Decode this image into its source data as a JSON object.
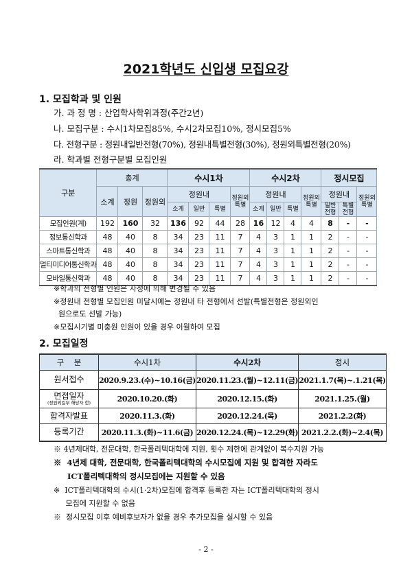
{
  "title": "2021학년도 신입생 모집요강",
  "section1": {
    "heading": "1. 모집학과 및 인원",
    "lines": [
      "가. 과 정 명 : 산업학사학위과정(주간2년)",
      "나. 모집구분 : 수시1차모집85%, 수시2차모집10%, 정시모집5%",
      "다. 전형구분 : 정원내일반전형(70%), 정원내특별전형(30%), 정원외특별전형(20%)",
      "라. 학과별 전형구분별 모집인원"
    ],
    "table": {
      "header": {
        "gubun": "구분",
        "total": "총계",
        "susi1": "수시1차",
        "susi2": "수시2차",
        "jeongsi": "정시모집",
        "subtotal": "소계",
        "quota": "정원",
        "outside": "정원외",
        "within": "정원내",
        "outside_special": "정원외\n특별",
        "general": "일반",
        "special": "특별",
        "general_track": "일반\n전형",
        "special_track": "특별\n전형"
      },
      "rows": [
        {
          "label": "모집인원(계)",
          "values": [
            "192",
            "160",
            "32",
            "136",
            "92",
            "44",
            "28",
            "16",
            "12",
            "4",
            "4",
            "8",
            "-",
            "-"
          ]
        },
        {
          "label": "정보통신학과",
          "values": [
            "48",
            "40",
            "8",
            "34",
            "23",
            "11",
            "7",
            "4",
            "3",
            "1",
            "1",
            "2",
            "-",
            "-"
          ]
        },
        {
          "label": "스마트통신학과",
          "values": [
            "48",
            "40",
            "8",
            "34",
            "23",
            "11",
            "7",
            "4",
            "3",
            "1",
            "1",
            "2",
            "-",
            "-"
          ]
        },
        {
          "label": "멀티미디어통신학과",
          "values": [
            "48",
            "40",
            "8",
            "34",
            "23",
            "11",
            "7",
            "4",
            "3",
            "1",
            "1",
            "2",
            "-",
            "-"
          ]
        },
        {
          "label": "모바일통신학과",
          "values": [
            "48",
            "40",
            "8",
            "34",
            "23",
            "11",
            "7",
            "4",
            "3",
            "1",
            "1",
            "2",
            "-",
            "-"
          ]
        }
      ]
    },
    "notes": [
      "※학과의 전형별 인원은 사정에 의해 변경될 수 있음",
      "※정원내 전형별 모집인원 미달시에는 정원내 타 전형에서 선발(특별전형은  정원외인",
      "  원으로도 선발 가능)",
      "※모집시기별 미충원 인원이 있을 경우 이월하여 모집"
    ]
  },
  "section2": {
    "heading": "2. 모집일정",
    "table": {
      "headers": [
        "구    분",
        "수시1차",
        "수시2차",
        "정시"
      ],
      "rows": [
        {
          "label": "원서접수",
          "values": [
            "2020.9.23.(수)~10.16(금)",
            "2020.11.23.(월)~12.11(금)",
            "2021.1.7(목)~.1.21(목)"
          ]
        },
        {
          "label": "면접일자",
          "sublabel": "(정원외일부 해당자 한)",
          "values": [
            "2020.10.20.(화)",
            "2020.12.15.(화)",
            "2021.1.25.(월)"
          ]
        },
        {
          "label": "합격자발표",
          "values": [
            "2020.11.3.(화)",
            "2020.12.24.(목)",
            "2021.2.2(화)"
          ]
        },
        {
          "label": "등록기간",
          "values": [
            "2020.11.3.(화)~11.6(금)",
            "2020.12.24.(목)~12.29(화)",
            "2021.2.2.(화)~2.4(목)"
          ]
        }
      ]
    },
    "notes": [
      "※  4년제대학, 전문대학, 한국폴리텍대학에 지원, 횟수 제한에 관계없이 복수지원 가능",
      "※  4년제 대학, 전문대학, 한국폴리텍대학의 수시모집에 지원 및 합격한 자라도",
      "     ICT폴리텍대학의 정시모집에는 지원할 수 있음",
      "※  ICT폴리텍대학의 수시(1·2차)모집에 합격후 등록한 자는 ICT폴리텍대학의 정시",
      "     모집에 지원할 수 없음",
      "※  정시모집 이후 예비후보자가 없을 경우 추가모집을 실시할 수 있음"
    ]
  },
  "page_number": "- 2 -",
  "colors": {
    "header_bg": "#d7e4f1"
  }
}
